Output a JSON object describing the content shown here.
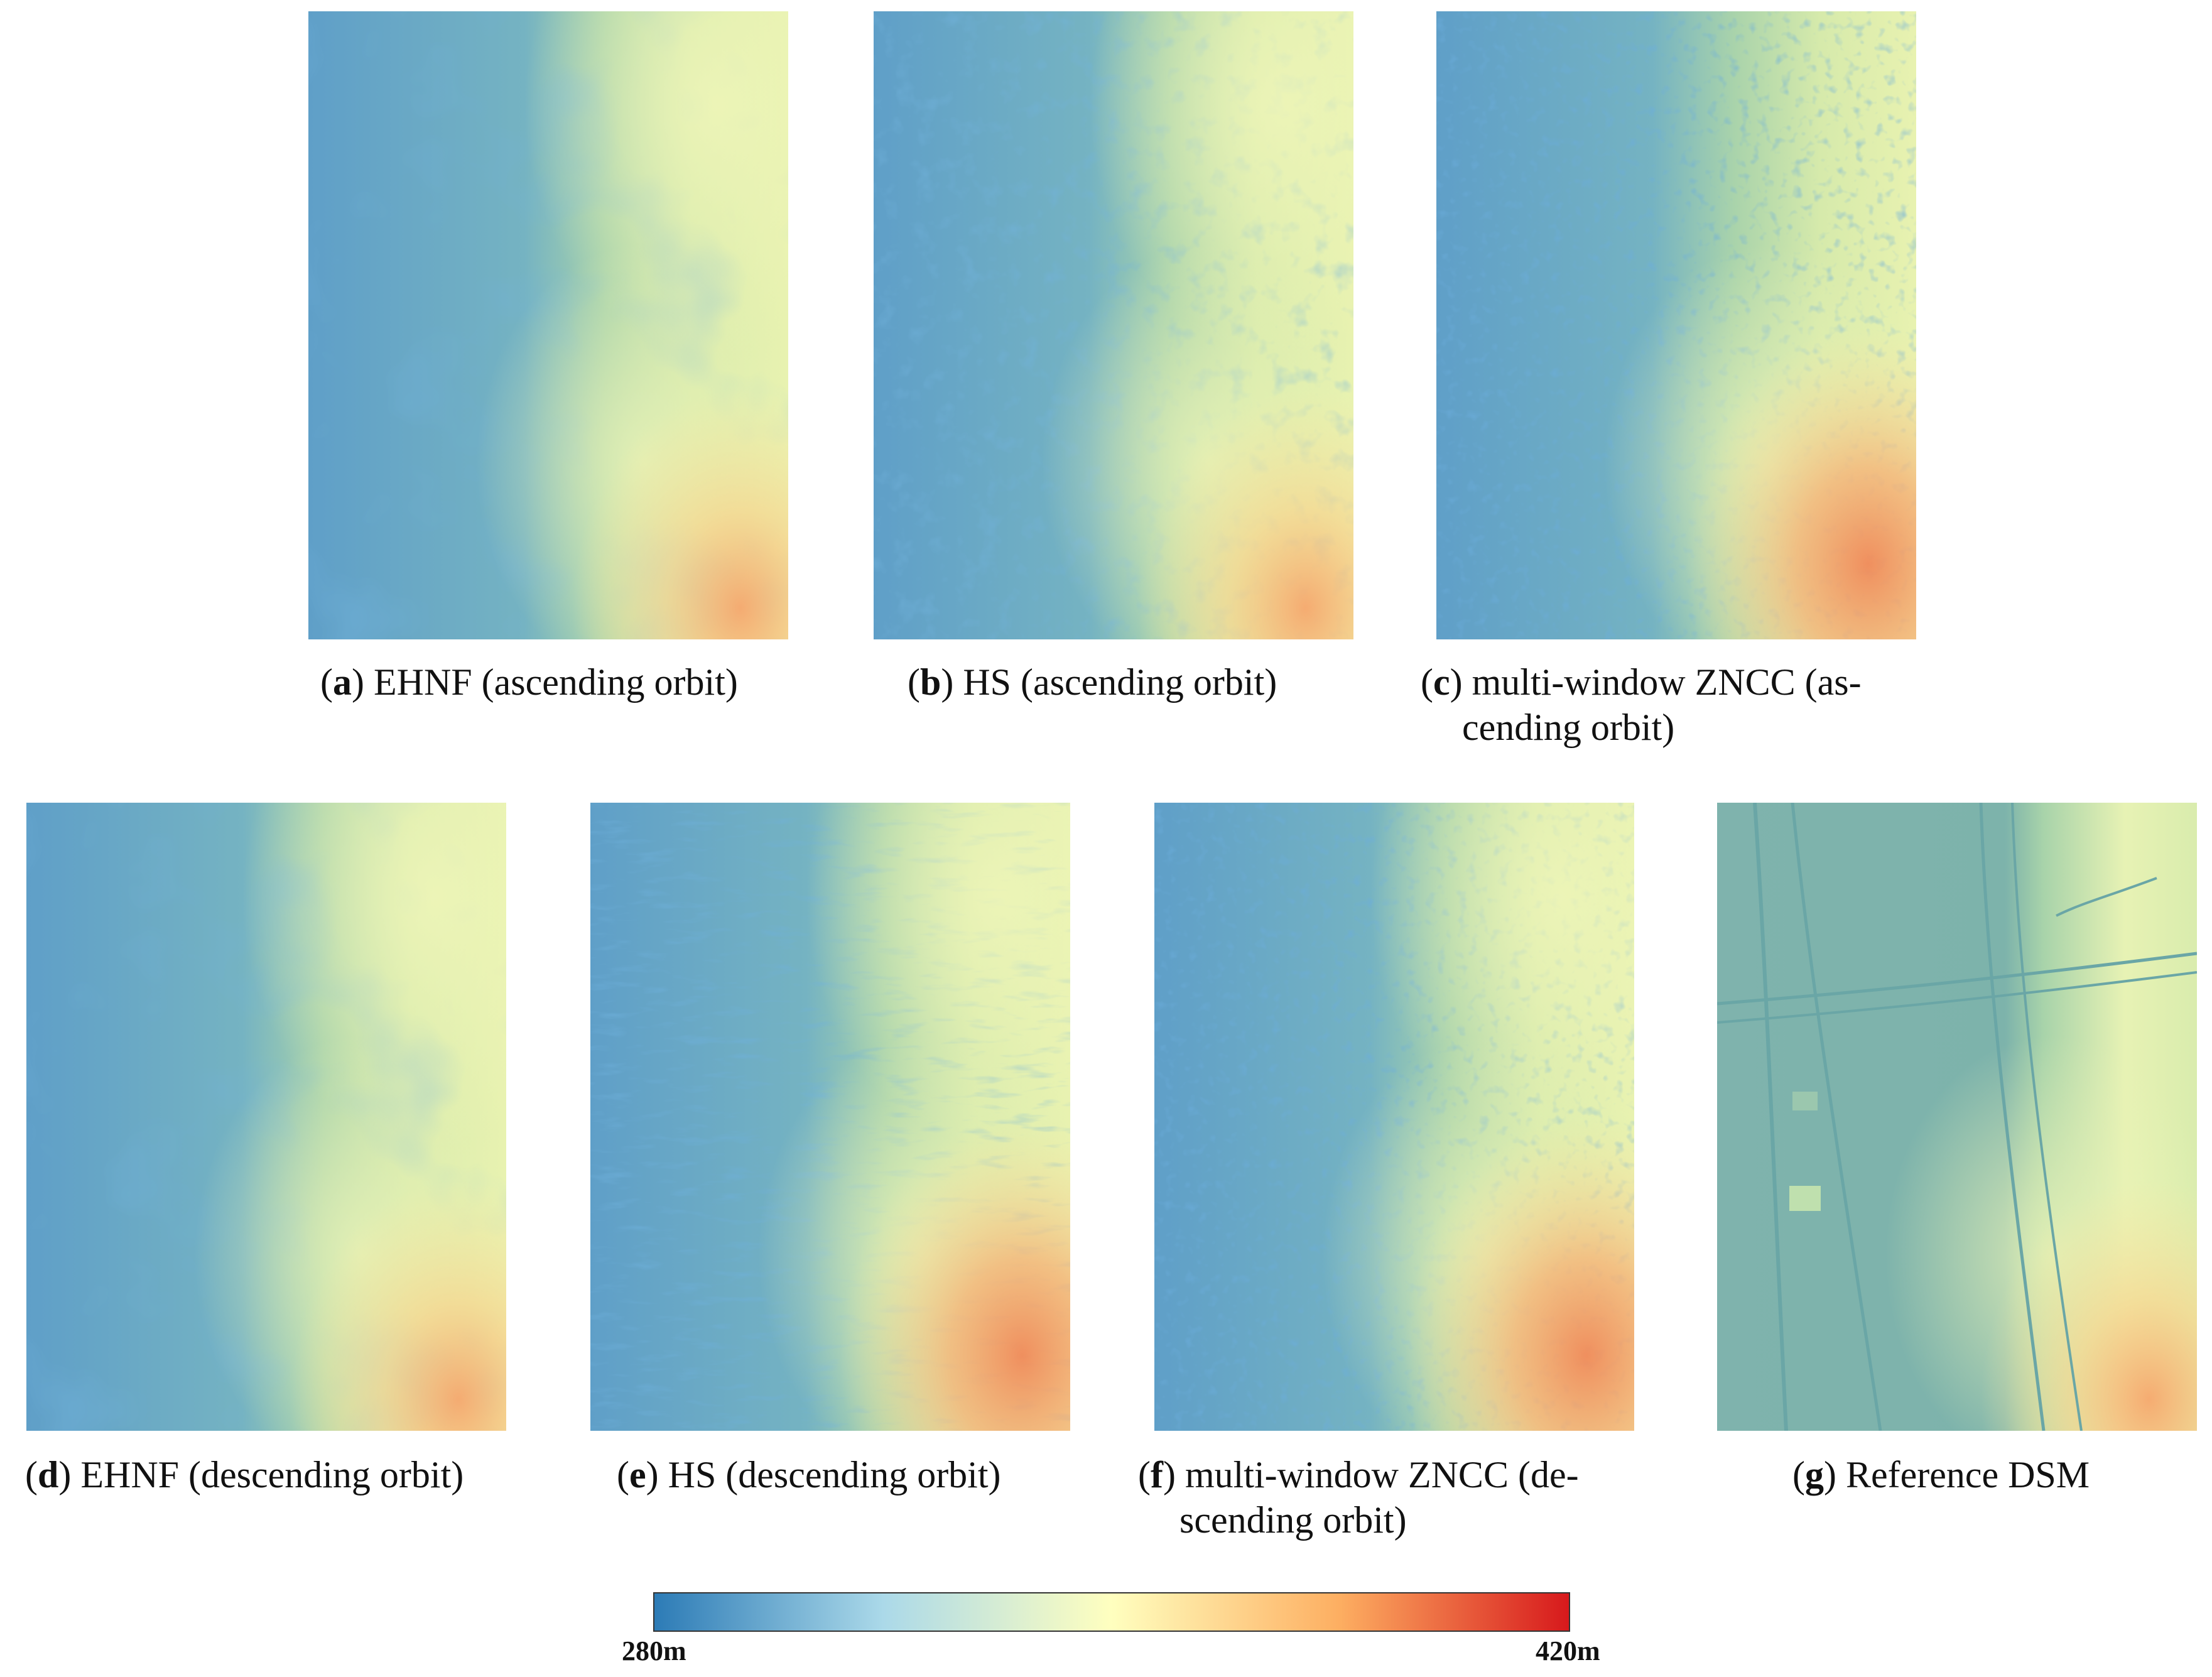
{
  "panels": [
    {
      "letter": "a",
      "text": "EHNF (ascending orbit)"
    },
    {
      "letter": "b",
      "text": "HS (ascending orbit)"
    },
    {
      "letter": "c",
      "text": "multi-window ZNCC (as-cending orbit)",
      "line1": "multi-window ZNCC (as-",
      "line2": "cending orbit)"
    },
    {
      "letter": "d",
      "text": "EHNF (descending orbit)"
    },
    {
      "letter": "e",
      "text": "HS (descending orbit)"
    },
    {
      "letter": "f",
      "text": "multi-window ZNCC (de-scending orbit)",
      "line1": "multi-window ZNCC (de-",
      "line2": "scending orbit)"
    },
    {
      "letter": "g",
      "text": "Reference DSM"
    }
  ],
  "colorbar": {
    "min_label": "280m",
    "max_label": "420m",
    "min_value": 280,
    "max_value": 420,
    "colors": [
      "#2c7bb6",
      "#abd9e9",
      "#ffffbf",
      "#fdae61",
      "#d7191c"
    ]
  }
}
